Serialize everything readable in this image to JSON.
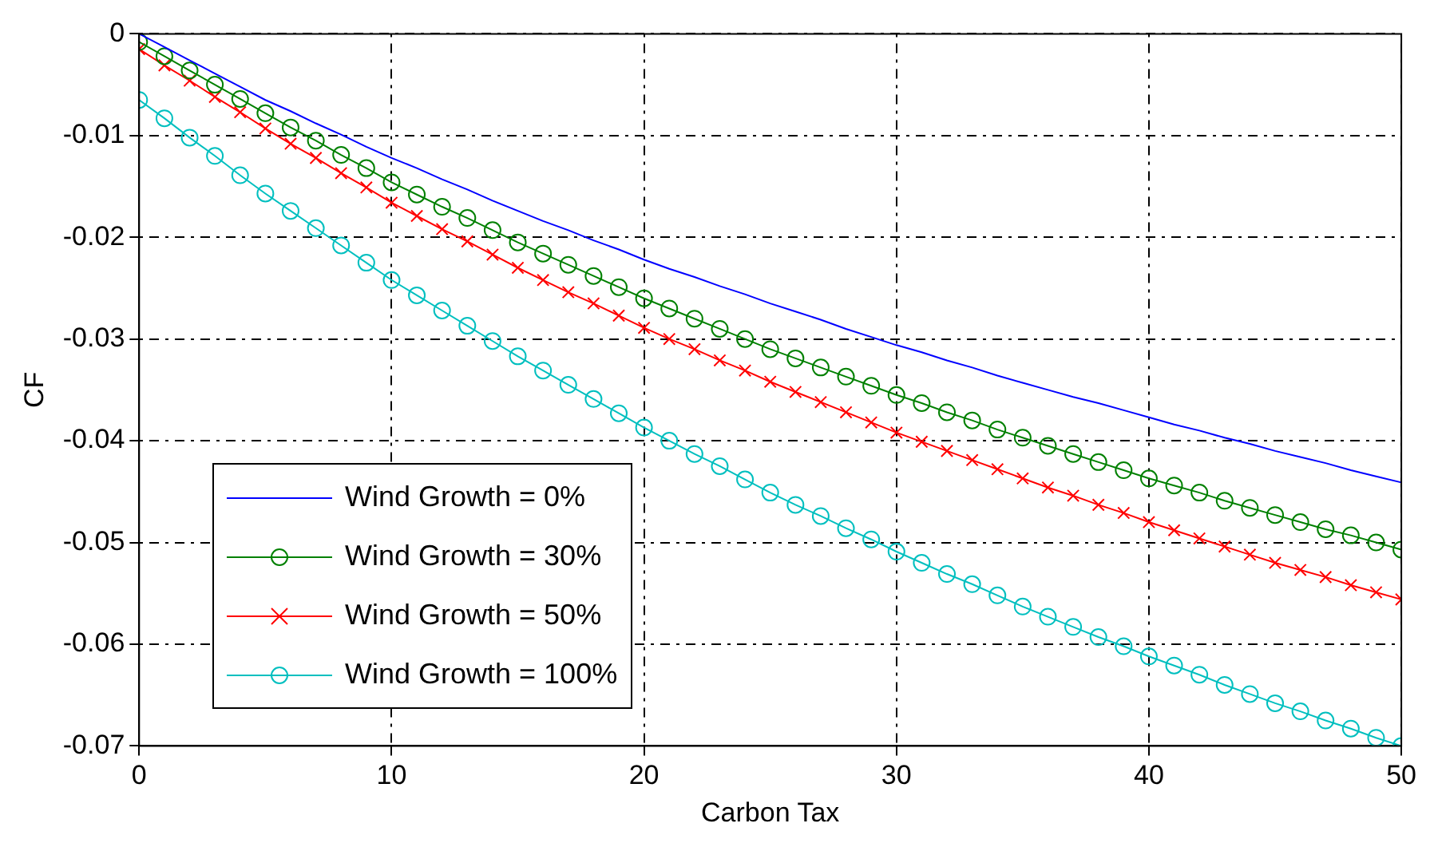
{
  "chart_data": {
    "type": "line",
    "xlabel": "Carbon Tax",
    "ylabel": "CF",
    "x": [
      0,
      1,
      2,
      3,
      4,
      5,
      6,
      7,
      8,
      9,
      10,
      11,
      12,
      13,
      14,
      15,
      16,
      17,
      18,
      19,
      20,
      21,
      22,
      23,
      24,
      25,
      26,
      27,
      28,
      29,
      30,
      31,
      32,
      33,
      34,
      35,
      36,
      37,
      38,
      39,
      40,
      41,
      42,
      43,
      44,
      45,
      46,
      47,
      48,
      49,
      50
    ],
    "xlim": [
      0,
      50
    ],
    "xticks": [
      0,
      10,
      20,
      30,
      40,
      50
    ],
    "ylim": [
      -0.07,
      0
    ],
    "yticks": [
      -0.07,
      -0.06,
      -0.05,
      -0.04,
      -0.03,
      -0.02,
      -0.01,
      0
    ],
    "grid": true,
    "legend": "bottom left",
    "line_style": "solid",
    "series": [
      {
        "name": "Wind Growth = 0%",
        "color": "#0000ff",
        "marker": "none",
        "values": [
          0,
          -0.0013,
          -0.0026,
          -0.0039,
          -0.0052,
          -0.0065,
          -0.0076,
          -0.0088,
          -0.0099,
          -0.0111,
          -0.0122,
          -0.0132,
          -0.0143,
          -0.0153,
          -0.0164,
          -0.0174,
          -0.0184,
          -0.0193,
          -0.0203,
          -0.0212,
          -0.0222,
          -0.0231,
          -0.0239,
          -0.0248,
          -0.0256,
          -0.0265,
          -0.0273,
          -0.0281,
          -0.029,
          -0.0298,
          -0.0306,
          -0.0313,
          -0.0321,
          -0.0328,
          -0.0336,
          -0.0343,
          -0.035,
          -0.0357,
          -0.0363,
          -0.037,
          -0.0377,
          -0.0384,
          -0.039,
          -0.0397,
          -0.0403,
          -0.041,
          -0.0416,
          -0.0422,
          -0.0429,
          -0.0435,
          -0.0441
        ]
      },
      {
        "name": "Wind Growth = 30%",
        "color": "#008000",
        "marker": "circle",
        "values": [
          -0.0008,
          -0.0022,
          -0.0036,
          -0.005,
          -0.0064,
          -0.0078,
          -0.0092,
          -0.0105,
          -0.0119,
          -0.0132,
          -0.0146,
          -0.0158,
          -0.017,
          -0.0181,
          -0.0193,
          -0.0205,
          -0.0216,
          -0.0227,
          -0.0238,
          -0.0249,
          -0.026,
          -0.027,
          -0.028,
          -0.029,
          -0.03,
          -0.031,
          -0.0319,
          -0.0328,
          -0.0337,
          -0.0346,
          -0.0355,
          -0.0363,
          -0.0372,
          -0.038,
          -0.0389,
          -0.0397,
          -0.0405,
          -0.0413,
          -0.0421,
          -0.0429,
          -0.0437,
          -0.0444,
          -0.0451,
          -0.0459,
          -0.0466,
          -0.0473,
          -0.048,
          -0.0487,
          -0.0493,
          -0.05,
          -0.0507
        ]
      },
      {
        "name": "Wind Growth = 50%",
        "color": "#ff0000",
        "marker": "cross",
        "values": [
          -0.0015,
          -0.0031,
          -0.0046,
          -0.0062,
          -0.0077,
          -0.0093,
          -0.0108,
          -0.0122,
          -0.0137,
          -0.0151,
          -0.0166,
          -0.0179,
          -0.0192,
          -0.0204,
          -0.0217,
          -0.023,
          -0.0242,
          -0.0254,
          -0.0265,
          -0.0277,
          -0.0289,
          -0.03,
          -0.031,
          -0.0321,
          -0.0331,
          -0.0342,
          -0.0352,
          -0.0362,
          -0.0372,
          -0.0382,
          -0.0392,
          -0.0401,
          -0.041,
          -0.0419,
          -0.0428,
          -0.0437,
          -0.0446,
          -0.0454,
          -0.0463,
          -0.0471,
          -0.048,
          -0.0488,
          -0.0496,
          -0.0504,
          -0.0512,
          -0.052,
          -0.0527,
          -0.0534,
          -0.0542,
          -0.0549,
          -0.0556
        ]
      },
      {
        "name": "Wind Growth = 100%",
        "color": "#00bfbf",
        "marker": "circle",
        "values": [
          -0.0065,
          -0.0083,
          -0.0102,
          -0.012,
          -0.0139,
          -0.0157,
          -0.0174,
          -0.0191,
          -0.0208,
          -0.0225,
          -0.0242,
          -0.0257,
          -0.0272,
          -0.0287,
          -0.0302,
          -0.0317,
          -0.0331,
          -0.0345,
          -0.0359,
          -0.0373,
          -0.0387,
          -0.04,
          -0.0413,
          -0.0425,
          -0.0438,
          -0.0451,
          -0.0463,
          -0.0474,
          -0.0486,
          -0.0497,
          -0.0509,
          -0.052,
          -0.0531,
          -0.0541,
          -0.0552,
          -0.0563,
          -0.0573,
          -0.0583,
          -0.0593,
          -0.0602,
          -0.0612,
          -0.0621,
          -0.063,
          -0.064,
          -0.0649,
          -0.0658,
          -0.0666,
          -0.0675,
          -0.0683,
          -0.0692,
          -0.07
        ]
      }
    ]
  }
}
